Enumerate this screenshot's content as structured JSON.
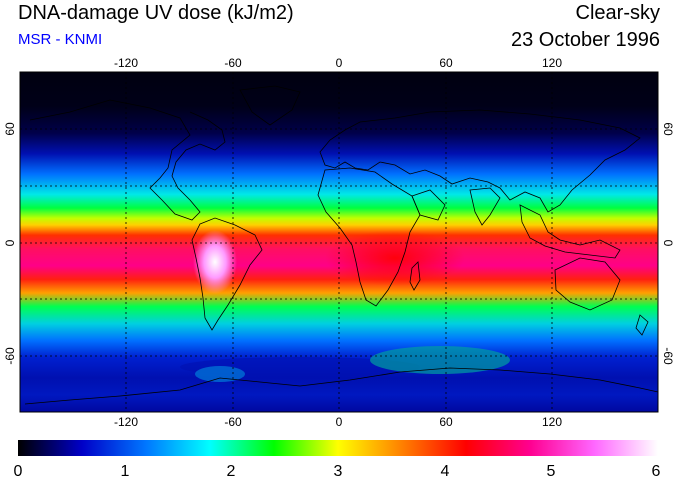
{
  "header": {
    "title": "DNA-damage UV dose (kJ/m2)",
    "source": "MSR - KNMI",
    "condition": "Clear-sky",
    "date": "23 October 1996"
  },
  "colors": {
    "source_text": "#0000ff"
  },
  "map": {
    "projection": "equirectangular",
    "lon_ticks": [
      "-120",
      "-60",
      "0",
      "60",
      "120"
    ],
    "lat_ticks_left": [
      "60",
      "0",
      "-60"
    ],
    "lat_ticks_right": [
      "60",
      "0",
      "-60"
    ],
    "gridlines": "dotted",
    "coastlines": true
  },
  "colorbar": {
    "min": 0,
    "max": 6,
    "labels": [
      "0",
      "1",
      "2",
      "3",
      "4",
      "5",
      "6"
    ],
    "stops": [
      "#000000",
      "#0000c8",
      "#0077ff",
      "#00ffff",
      "#00ff00",
      "#ffff00",
      "#ff8000",
      "#ff0000",
      "#ff0090",
      "#ff66ff",
      "#ffffff"
    ]
  }
}
